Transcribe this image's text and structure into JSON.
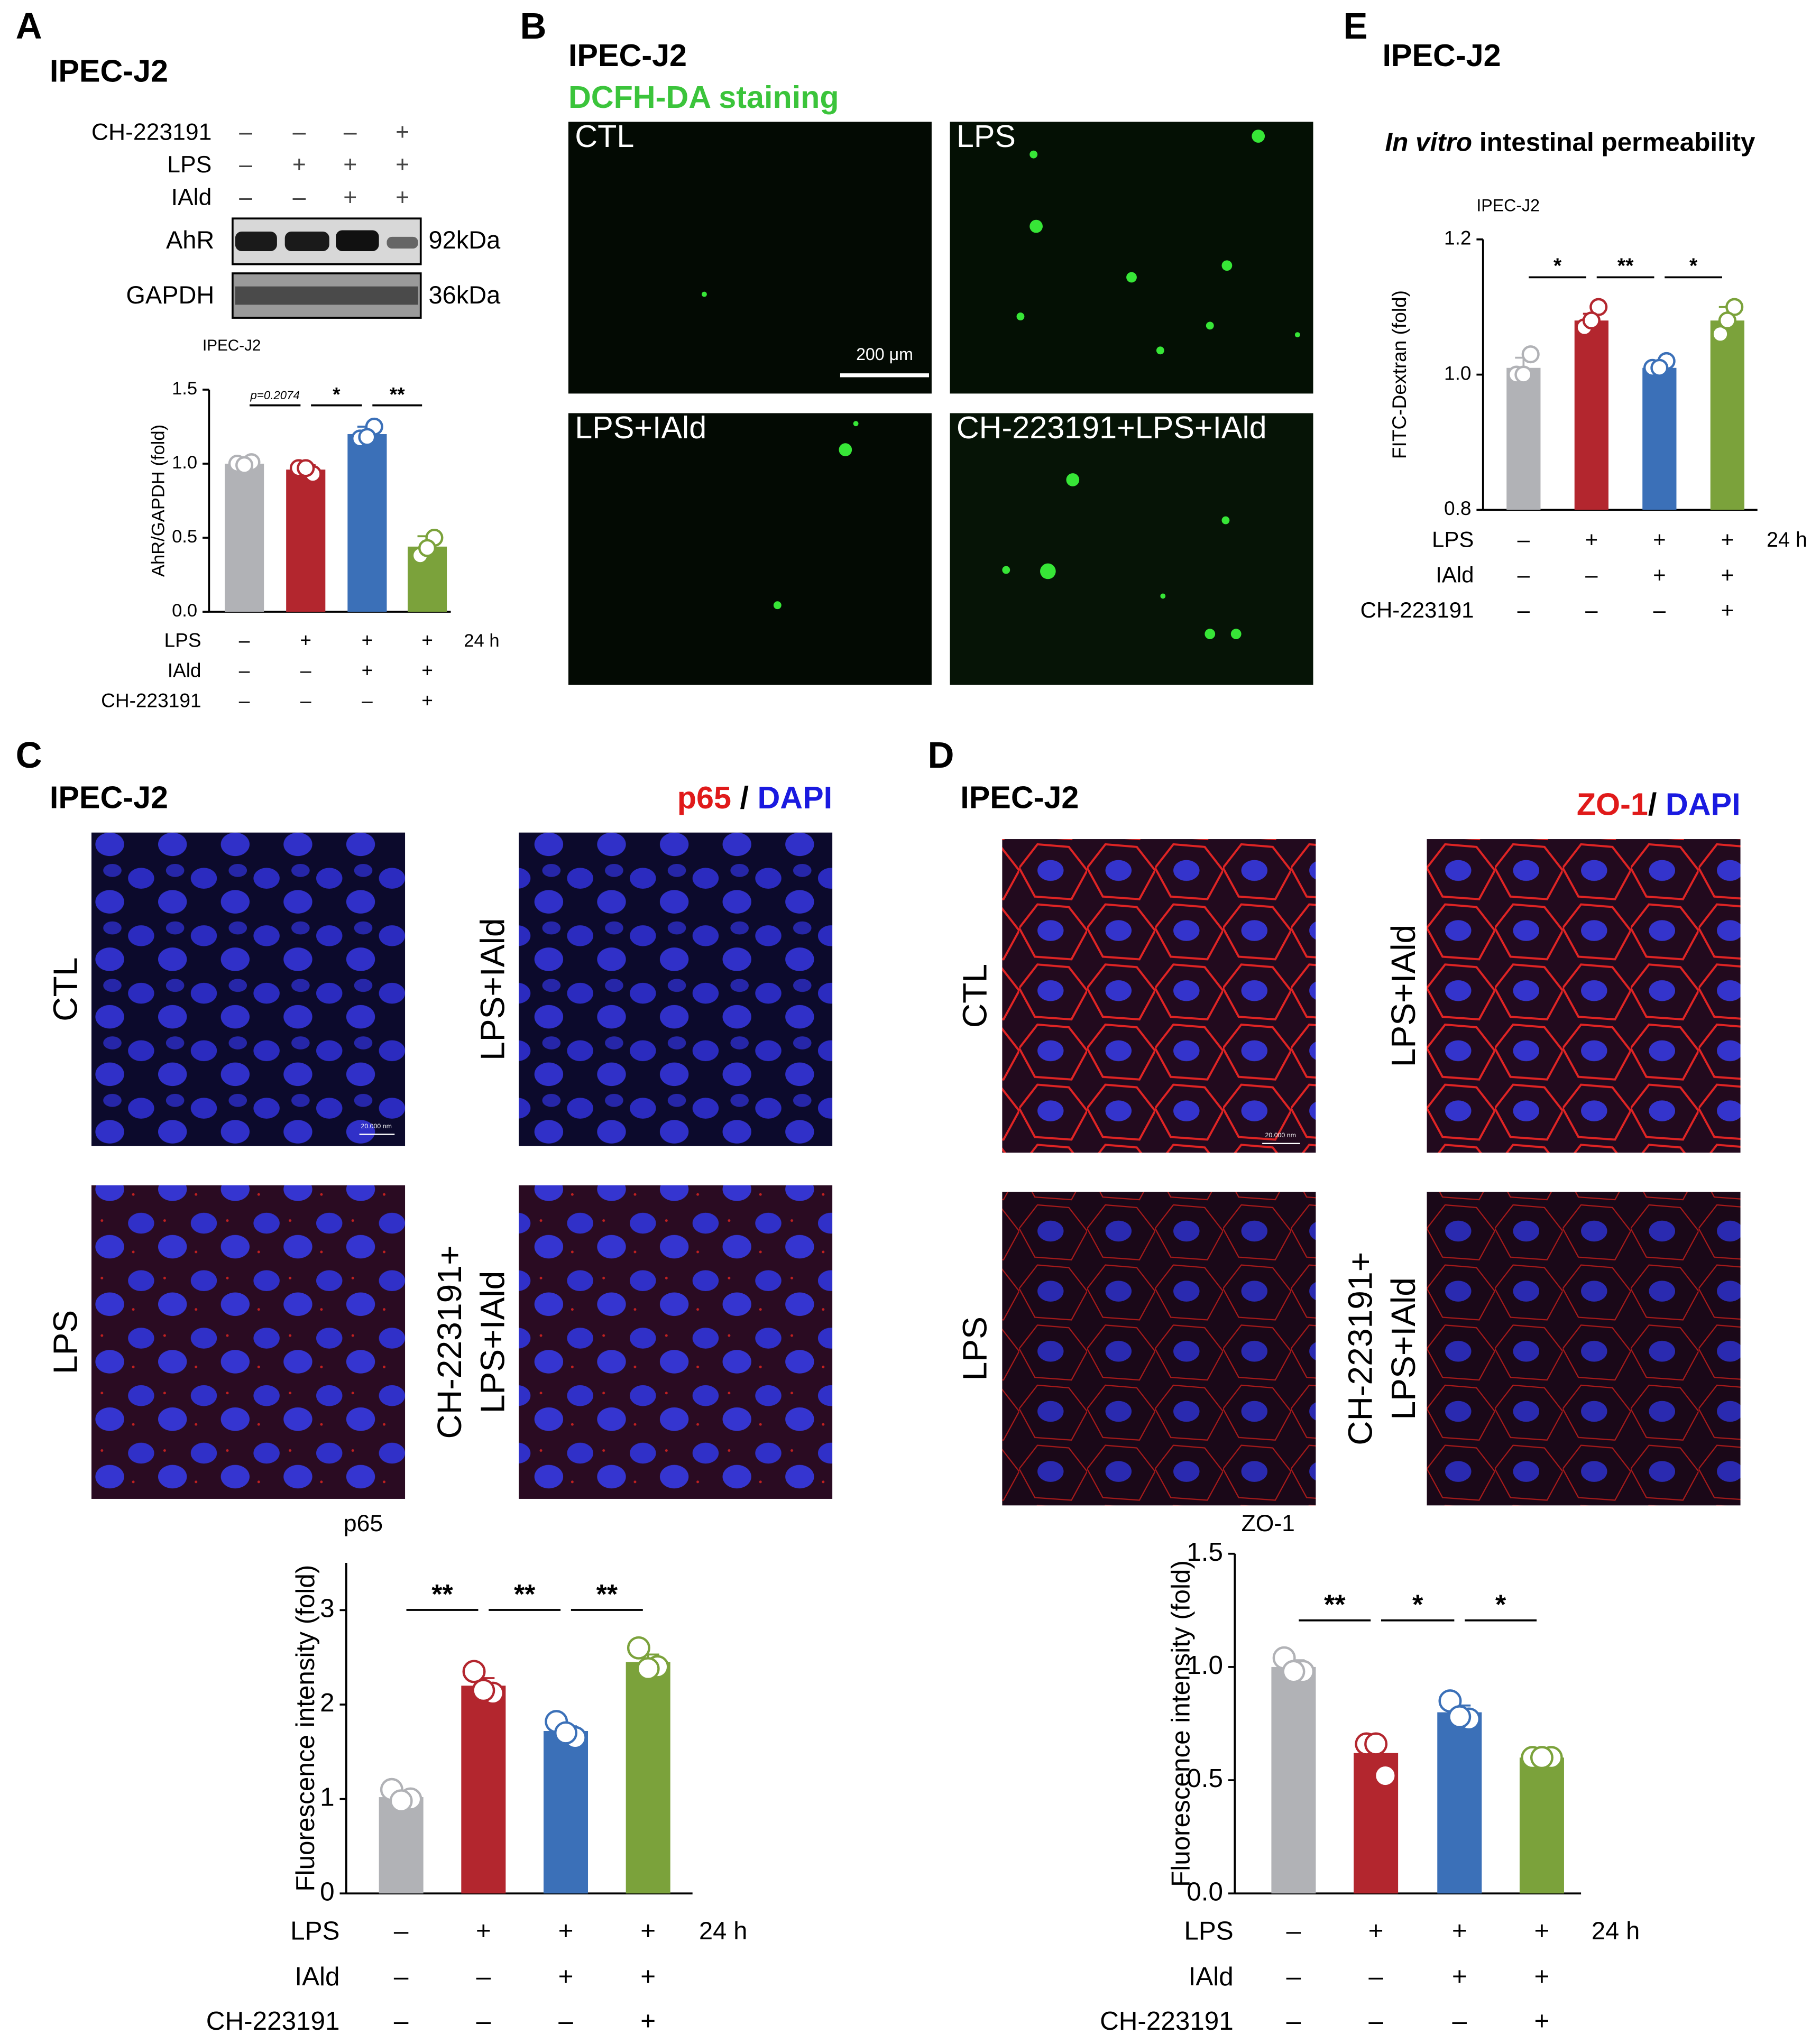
{
  "panels": {
    "A": {
      "letter": "A",
      "title": "IPEC-J2",
      "blot": {
        "rows": [
          {
            "label": "CH-223191",
            "marks": [
              "–",
              "–",
              "–",
              "+"
            ]
          },
          {
            "label": "LPS",
            "marks": [
              "–",
              "+",
              "+",
              "+"
            ]
          },
          {
            "label": "IAld",
            "marks": [
              "–",
              "–",
              "+",
              "+"
            ]
          }
        ],
        "bands": [
          {
            "label": "AhR",
            "size": "92kDa"
          },
          {
            "label": "GAPDH",
            "size": "36kDa"
          }
        ]
      }
    },
    "B": {
      "letter": "B",
      "title": "IPEC-J2",
      "subtitle": "DCFH-DA staining",
      "images": [
        "CTL",
        "LPS",
        "LPS+IAld",
        "CH-223191+LPS+IAld"
      ],
      "scale_bar": "200 μm"
    },
    "C": {
      "letter": "C",
      "title": "IPEC-J2",
      "stain": [
        "p65",
        "/",
        "DAPI"
      ],
      "images": [
        [
          "CTL"
        ],
        [
          "LPS+IAld"
        ],
        [
          "LPS"
        ],
        [
          "CH-223191+",
          "LPS+IAld"
        ]
      ],
      "scale_bar": "20.000 nm"
    },
    "D": {
      "letter": "D",
      "title": "IPEC-J2",
      "stain": [
        "ZO-1",
        "/",
        "DAPI"
      ],
      "images": [
        [
          "CTL"
        ],
        [
          "LPS+IAld"
        ],
        [
          "LPS"
        ],
        [
          "CH-223191+",
          "LPS+IAld"
        ]
      ],
      "scale_bar": "20.000 nm"
    },
    "E": {
      "letter": "E",
      "title": "IPEC-J2",
      "subtitle_italic": "In vitro",
      "subtitle": "intestinal permeability"
    }
  },
  "chart_data": [
    {
      "type": "bar",
      "title": "IPEC-J2",
      "y_label": "AhR/GAPDH (fold)",
      "categories": [
        null,
        null,
        null,
        null
      ],
      "values": [
        1.0,
        0.96,
        1.2,
        0.44
      ],
      "errors": [
        0.02,
        0.03,
        0.05,
        0.07
      ],
      "points": [
        [
          1.0,
          1.01,
          0.99
        ],
        [
          0.97,
          0.93,
          0.97
        ],
        [
          1.17,
          1.25,
          1.18
        ],
        [
          0.38,
          0.5,
          0.43
        ]
      ],
      "colors": [
        "#b1b2b6",
        "#b3262e",
        "#3b70b8",
        "#7ba23b"
      ],
      "ylim": [
        0,
        1.5
      ],
      "yticks": [
        {
          "value": 0,
          "label": "0.0"
        },
        0.5,
        {
          "value": 1,
          "label": "1.0"
        },
        1.5
      ],
      "significance": [
        "p=0.2074",
        "*",
        "**"
      ],
      "conditions": [
        {
          "label": "LPS",
          "marks": [
            "–",
            "+",
            "+",
            "+"
          ]
        },
        {
          "label": "IAld",
          "marks": [
            "–",
            "–",
            "+",
            "+"
          ]
        },
        {
          "label": "CH-223191",
          "marks": [
            "–",
            "–",
            "–",
            "+"
          ]
        }
      ],
      "duration": "24 h"
    },
    {
      "type": "bar",
      "title": "IPEC-J2",
      "y_label": "FITC-Dextran (fold)",
      "categories": [
        null,
        null,
        null,
        null
      ],
      "values": [
        1.01,
        1.08,
        1.01,
        1.08
      ],
      "errors": [
        0.015,
        0.01,
        0.005,
        0.02
      ],
      "points": [
        [
          1.0,
          1.03,
          1.0
        ],
        [
          1.07,
          1.1,
          1.08
        ],
        [
          1.01,
          1.02,
          1.01
        ],
        [
          1.06,
          1.1,
          1.08
        ]
      ],
      "colors": [
        "#b1b2b6",
        "#b3262e",
        "#3b70b8",
        "#7ba23b"
      ],
      "ylim": [
        0.8,
        1.2
      ],
      "yticks": [
        0.8,
        {
          "value": 1,
          "label": "1.0"
        },
        1.2
      ],
      "significance": [
        "*",
        "**",
        "*"
      ],
      "conditions": [
        {
          "label": "LPS",
          "marks": [
            "–",
            "+",
            "+",
            "+"
          ]
        },
        {
          "label": "IAld",
          "marks": [
            "–",
            "–",
            "+",
            "+"
          ]
        },
        {
          "label": "CH-223191",
          "marks": [
            "–",
            "–",
            "–",
            "+"
          ]
        }
      ],
      "duration": "24 h"
    },
    {
      "type": "bar",
      "title": "p65",
      "y_label": "Fluorescence intensity (fold)",
      "categories": [
        null,
        null,
        null,
        null
      ],
      "values": [
        1.02,
        2.2,
        1.72,
        2.45
      ],
      "errors": [
        0.05,
        0.08,
        0.05,
        0.08
      ],
      "points": [
        [
          1.1,
          1.0,
          0.98
        ],
        [
          2.35,
          2.12,
          2.15
        ],
        [
          1.82,
          1.65,
          1.7
        ],
        [
          2.6,
          2.4,
          2.38
        ]
      ],
      "colors": [
        "#b1b2b6",
        "#b3262e",
        "#3b70b8",
        "#7ba23b"
      ],
      "ylim": [
        0,
        3.5
      ],
      "yticks": [
        0,
        1,
        2,
        3
      ],
      "significance": [
        "**",
        "**",
        "**"
      ],
      "conditions": [
        {
          "label": "LPS",
          "marks": [
            "–",
            "+",
            "+",
            "+"
          ]
        },
        {
          "label": "IAld",
          "marks": [
            "–",
            "–",
            "+",
            "+"
          ]
        },
        {
          "label": "CH-223191",
          "marks": [
            "–",
            "–",
            "–",
            "+"
          ]
        }
      ],
      "duration": "24 h"
    },
    {
      "type": "bar",
      "title": "ZO-1",
      "y_label": "Fluorescence intensity (fold)",
      "categories": [
        null,
        null,
        null,
        null
      ],
      "values": [
        1.0,
        0.62,
        0.8,
        0.6
      ],
      "errors": [
        0.03,
        0.05,
        0.03,
        0.01
      ],
      "points": [
        [
          1.04,
          0.98,
          0.98
        ],
        [
          0.66,
          0.52,
          0.66
        ],
        [
          0.85,
          0.77,
          0.78
        ],
        [
          0.6,
          0.6,
          0.6
        ]
      ],
      "colors": [
        "#b1b2b6",
        "#b3262e",
        "#3b70b8",
        "#7ba23b"
      ],
      "ylim": [
        0,
        1.5
      ],
      "yticks": [
        {
          "value": 0,
          "label": "0.0"
        },
        0.5,
        {
          "value": 1,
          "label": "1.0"
        },
        1.5
      ],
      "significance": [
        "**",
        "*",
        "*"
      ],
      "conditions": [
        {
          "label": "LPS",
          "marks": [
            "–",
            "+",
            "+",
            "+"
          ]
        },
        {
          "label": "IAld",
          "marks": [
            "–",
            "–",
            "+",
            "+"
          ]
        },
        {
          "label": "CH-223191",
          "marks": [
            "–",
            "–",
            "–",
            "+"
          ]
        }
      ],
      "duration": "24 h"
    }
  ]
}
